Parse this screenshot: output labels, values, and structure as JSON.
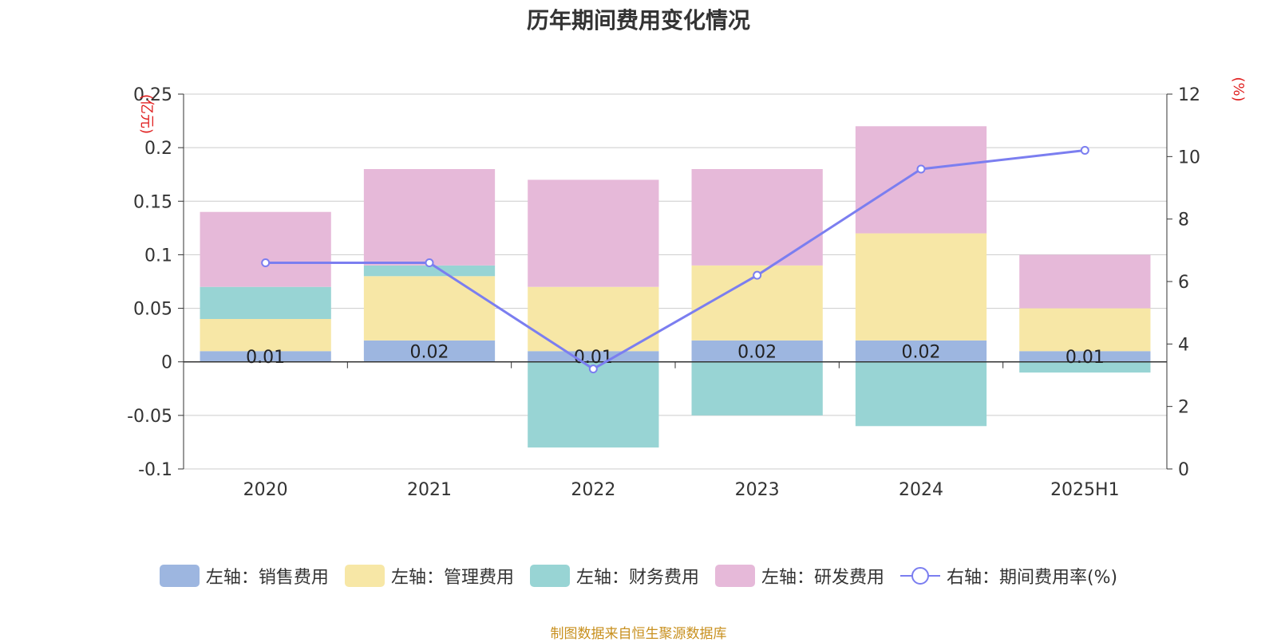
{
  "chart_data": {
    "type": "bar",
    "title": "历年期间费用变化情况",
    "categories": [
      "2020",
      "2021",
      "2022",
      "2023",
      "2024",
      "2025H1"
    ],
    "left_axis": {
      "unit": "(亿元)",
      "ylim": [
        -0.1,
        0.25
      ],
      "ticks": [
        "-0.1",
        "-0.05",
        "0",
        "0.05",
        "0.1",
        "0.15",
        "0.2",
        "0.25"
      ]
    },
    "right_axis": {
      "unit": "(%)",
      "ylim": [
        0,
        12
      ],
      "ticks": [
        "0",
        "2",
        "4",
        "6",
        "8",
        "10",
        "12"
      ]
    },
    "series": [
      {
        "name": "左轴：销售费用",
        "type": "bar",
        "color": "#9db6e0",
        "values": [
          0.01,
          0.02,
          0.01,
          0.02,
          0.02,
          0.01
        ]
      },
      {
        "name": "左轴：管理费用",
        "type": "bar",
        "color": "#f7e7a6",
        "values": [
          0.03,
          0.06,
          0.06,
          0.07,
          0.1,
          0.04
        ]
      },
      {
        "name": "左轴：财务费用",
        "type": "bar",
        "color": "#98d4d4",
        "values": [
          0.03,
          0.01,
          -0.08,
          -0.05,
          -0.06,
          -0.01
        ]
      },
      {
        "name": "左轴：研发费用",
        "type": "bar",
        "color": "#e6b9d9",
        "values": [
          0.07,
          0.09,
          0.1,
          0.09,
          0.1,
          0.05
        ]
      },
      {
        "name": "右轴：期间费用率(%)",
        "type": "line",
        "color": "#7b7ef0",
        "values": [
          6.6,
          6.6,
          3.2,
          6.2,
          9.6,
          10.2
        ]
      }
    ],
    "data_labels": [
      "0.01",
      "0.02",
      "0.01",
      "0.02",
      "0.02",
      "0.01"
    ],
    "grid": true,
    "legend_position": "bottom"
  },
  "source": "制图数据来自恒生聚源数据库"
}
